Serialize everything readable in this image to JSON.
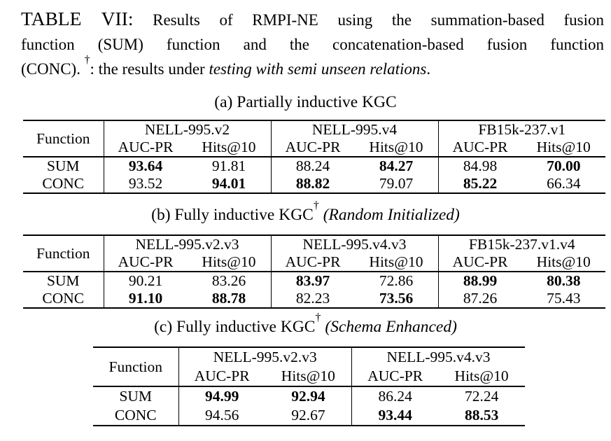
{
  "caption": {
    "title": "TABLE VII:",
    "line1_rest": "Results of RMPI-NE using the summation-based fusion",
    "line2": "function (SUM) function and the concatenation-based fusion function",
    "line3_pre": "(CONC). ",
    "line3_dagger": "†",
    "line3_mid": ": the results under ",
    "line3_italic": "testing with semi unseen relations",
    "line3_end": "."
  },
  "metrics": {
    "auc": "AUC-PR",
    "hits": "Hits@10"
  },
  "tables": [
    {
      "caption": {
        "prefix": "(a) Partially inductive KGC",
        "dagger": "",
        "italic": ""
      },
      "function_label": "Function",
      "groups": [
        "NELL-995.v2",
        "NELL-995.v4",
        "FB15k-237.v1"
      ],
      "subheaders": [
        "AUC-PR",
        "Hits@10",
        "AUC-PR",
        "Hits@10",
        "AUC-PR",
        "Hits@10"
      ],
      "rows": [
        {
          "label": "SUM",
          "cells": [
            {
              "v": "93.64",
              "b": true
            },
            {
              "v": "91.81",
              "b": false
            },
            {
              "v": "88.24",
              "b": false
            },
            {
              "v": "84.27",
              "b": true
            },
            {
              "v": "84.98",
              "b": false
            },
            {
              "v": "70.00",
              "b": true
            }
          ]
        },
        {
          "label": "CONC",
          "cells": [
            {
              "v": "93.52",
              "b": false
            },
            {
              "v": "94.01",
              "b": true
            },
            {
              "v": "88.82",
              "b": true
            },
            {
              "v": "79.07",
              "b": false
            },
            {
              "v": "85.22",
              "b": true
            },
            {
              "v": "66.34",
              "b": false
            }
          ]
        }
      ]
    },
    {
      "caption": {
        "prefix": "(b) Fully inductive KGC",
        "dagger": "†",
        "italic": " (Random Initialized)"
      },
      "function_label": "Function",
      "groups": [
        "NELL-995.v2.v3",
        "NELL-995.v4.v3",
        "FB15k-237.v1.v4"
      ],
      "subheaders": [
        "AUC-PR",
        "Hits@10",
        "AUC-PR",
        "Hits@10",
        "AUC-PR",
        "Hits@10"
      ],
      "rows": [
        {
          "label": "SUM",
          "cells": [
            {
              "v": "90.21",
              "b": false
            },
            {
              "v": "83.26",
              "b": false
            },
            {
              "v": "83.97",
              "b": true
            },
            {
              "v": "72.86",
              "b": false
            },
            {
              "v": "88.99",
              "b": true
            },
            {
              "v": "80.38",
              "b": true
            }
          ]
        },
        {
          "label": "CONC",
          "cells": [
            {
              "v": "91.10",
              "b": true
            },
            {
              "v": "88.78",
              "b": true
            },
            {
              "v": "82.23",
              "b": false
            },
            {
              "v": "73.56",
              "b": true
            },
            {
              "v": "87.26",
              "b": false
            },
            {
              "v": "75.43",
              "b": false
            }
          ]
        }
      ]
    },
    {
      "caption": {
        "prefix": "(c) Fully inductive KGC",
        "dagger": "†",
        "italic": " (Schema Enhanced)"
      },
      "function_label": "Function",
      "groups": [
        "NELL-995.v2.v3",
        "NELL-995.v4.v3"
      ],
      "subheaders": [
        "AUC-PR",
        "Hits@10",
        "AUC-PR",
        "Hits@10"
      ],
      "rows": [
        {
          "label": "SUM",
          "cells": [
            {
              "v": "94.99",
              "b": true
            },
            {
              "v": "92.94",
              "b": true
            },
            {
              "v": "86.24",
              "b": false
            },
            {
              "v": "72.24",
              "b": false
            }
          ]
        },
        {
          "label": "CONC",
          "cells": [
            {
              "v": "94.56",
              "b": false
            },
            {
              "v": "92.67",
              "b": false
            },
            {
              "v": "93.44",
              "b": true
            },
            {
              "v": "88.53",
              "b": true
            }
          ]
        }
      ]
    }
  ]
}
